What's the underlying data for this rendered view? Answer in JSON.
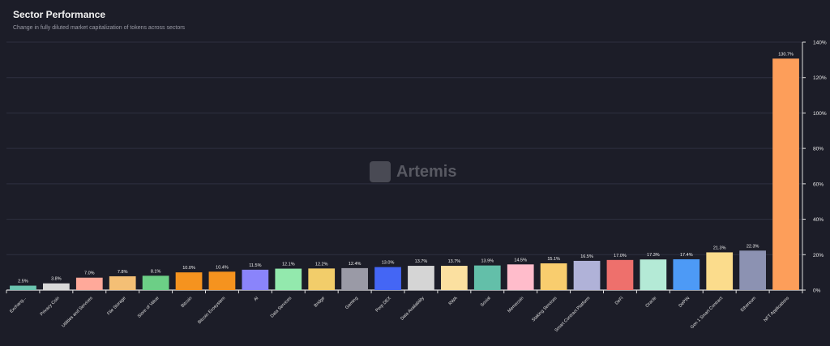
{
  "chart_data": {
    "type": "bar",
    "title": "Sector Performance",
    "subtitle": "Change in fully diluted market capitalization of tokens across sectors",
    "xlabel": "",
    "ylabel": "",
    "ylim": [
      0,
      140
    ],
    "yticks": [
      "0%",
      "20%",
      "40%",
      "60%",
      "80%",
      "100%",
      "120%",
      "140%"
    ],
    "grid": true,
    "watermark": "Artemis",
    "categories": [
      "Exchang...",
      "Privacy Coin",
      "Utilities and Services",
      "File Storage",
      "Store of Value",
      "Bitcoin",
      "Bitcoin Ecosystem",
      "AI",
      "Data Services",
      "Bridge",
      "Gaming",
      "Perp DEX",
      "Data Availability",
      "RWA",
      "Social",
      "Memecoin",
      "Staking Services",
      "Smart Contract Platform",
      "DeFi",
      "Oracle",
      "DePIN",
      "Gen 1 Smart Contract",
      "Ethereum",
      "NFT Applications"
    ],
    "values": [
      2.5,
      3.8,
      7.0,
      7.8,
      8.1,
      10.0,
      10.4,
      11.5,
      12.1,
      12.2,
      12.4,
      13.0,
      13.7,
      13.7,
      13.9,
      14.5,
      15.1,
      16.5,
      17.0,
      17.3,
      17.4,
      21.3,
      22.3,
      130.7
    ],
    "labels": [
      "2.5%",
      "3.8%",
      "7.0%",
      "7.8%",
      "8.1%",
      "10.0%",
      "10.4%",
      "11.5%",
      "12.1%",
      "12.2%",
      "12.4%",
      "13.0%",
      "13.7%",
      "13.7%",
      "13.9%",
      "14.5%",
      "15.1%",
      "16.5%",
      "17.0%",
      "17.3%",
      "17.4%",
      "21.3%",
      "22.3%",
      "130.7%"
    ],
    "colors": [
      "#6cc5b0",
      "#d9d9d9",
      "#ffa99a",
      "#f4bf75",
      "#6ccf86",
      "#f5931f",
      "#f5931f",
      "#8a84fb",
      "#93e9ad",
      "#f2cd6a",
      "#9a9aa6",
      "#4466f5",
      "#d5d5d5",
      "#fbe0a0",
      "#63bfa9",
      "#ffbccb",
      "#f9cd6e",
      "#b0b2d8",
      "#ee706c",
      "#b4ead6",
      "#4d9af6",
      "#fbdc8c",
      "#8c92b2",
      "#fd9e5a"
    ]
  }
}
